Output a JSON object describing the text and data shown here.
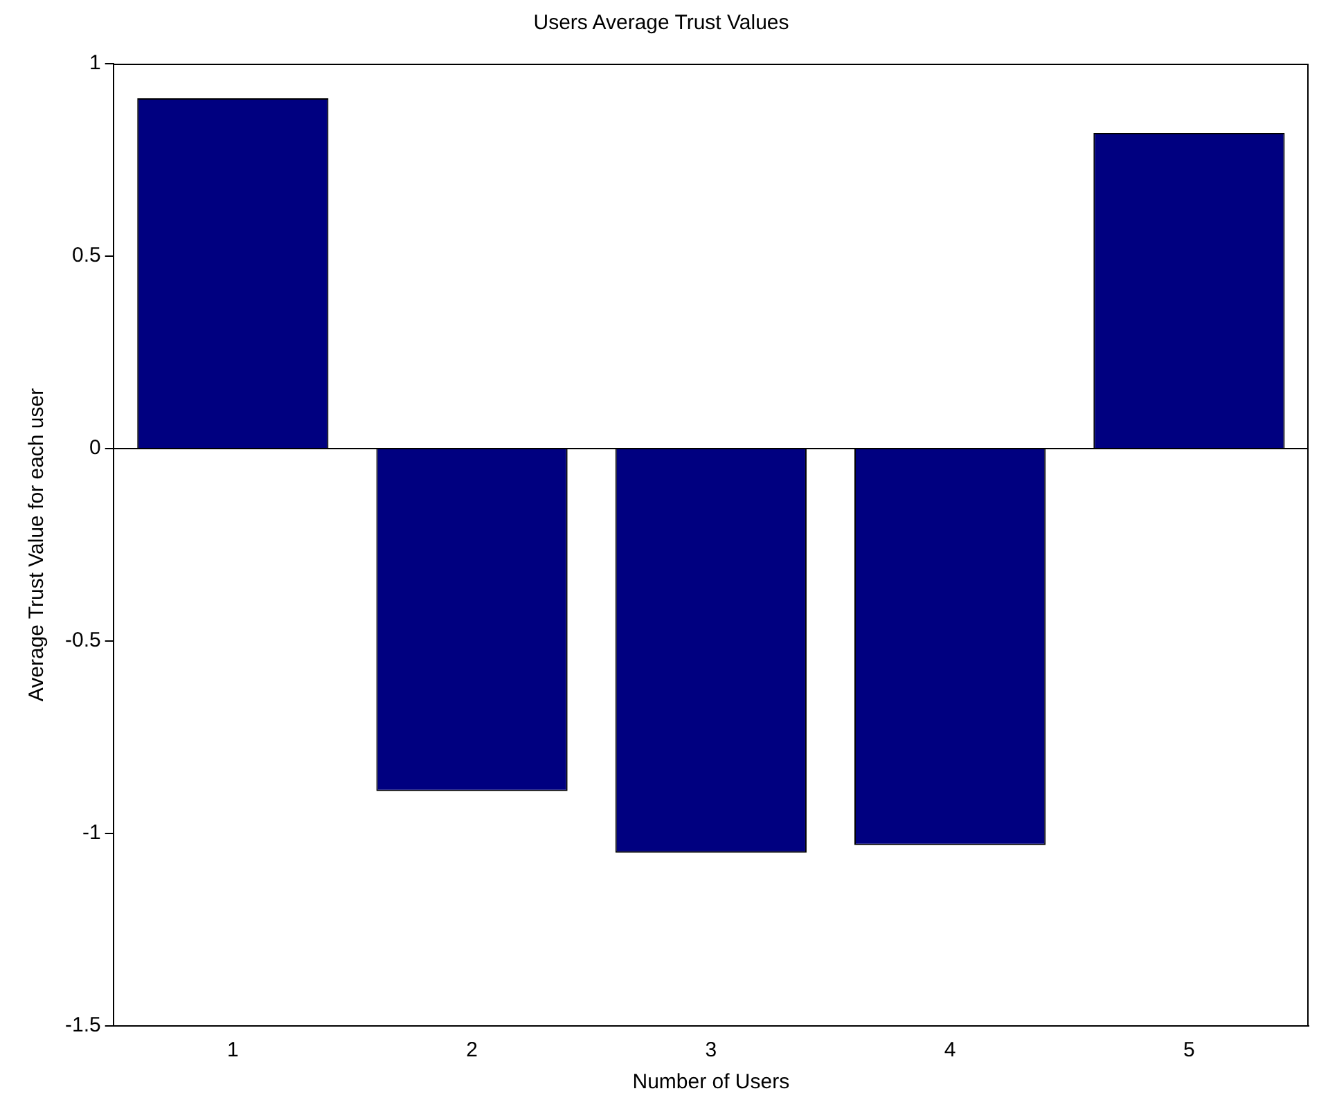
{
  "chart_data": {
    "type": "bar",
    "title": "Users Average Trust Values",
    "xlabel": "Number of Users",
    "ylabel": "Average Trust Value for each user",
    "categories": [
      "1",
      "2",
      "3",
      "4",
      "5"
    ],
    "values": [
      0.91,
      -0.89,
      -1.05,
      -1.03,
      0.82
    ],
    "color": "#000080",
    "ylim": [
      -1.5,
      1
    ],
    "yticks": [
      -1.5,
      -1,
      -0.5,
      0,
      0.5,
      1
    ],
    "grid": false,
    "ref_lines": [
      {
        "axis": "y",
        "value": 0,
        "color": "#000000"
      }
    ],
    "legend": false
  }
}
